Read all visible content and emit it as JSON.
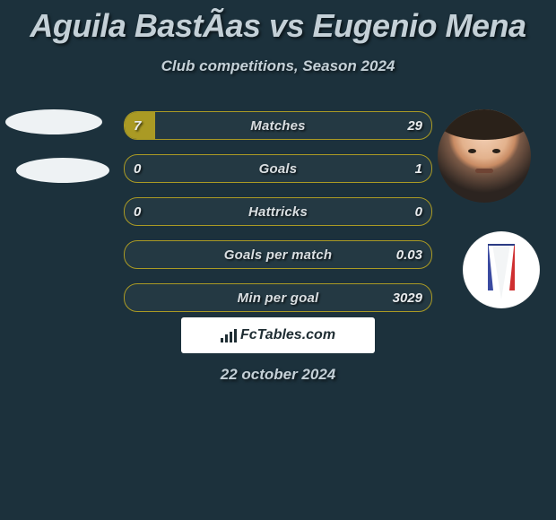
{
  "colors": {
    "background": "#1c313c",
    "bar_fill": "#aa9a24",
    "bar_border": "#aa9a24",
    "text_main": "#c4d0d7",
    "text_value": "#e8ebed",
    "badge_bg": "#ffffff",
    "badge_text": "#1f2d33"
  },
  "header": {
    "title": "Aguila BastÃ­as vs Eugenio Mena",
    "subtitle": "Club competitions, Season 2024"
  },
  "rows": [
    {
      "label": "Matches",
      "left": "7",
      "right": "29",
      "left_pct": 10,
      "right_pct": 0
    },
    {
      "label": "Goals",
      "left": "0",
      "right": "1",
      "left_pct": 0,
      "right_pct": 0
    },
    {
      "label": "Hattricks",
      "left": "0",
      "right": "0",
      "left_pct": 0,
      "right_pct": 0
    },
    {
      "label": "Goals per match",
      "left": "",
      "right": "0.03",
      "left_pct": 0,
      "right_pct": 0
    },
    {
      "label": "Min per goal",
      "left": "",
      "right": "3029",
      "left_pct": 0,
      "right_pct": 0
    }
  ],
  "footer": {
    "site": "FcTables.com",
    "date": "22 october 2024"
  },
  "typography": {
    "title_fontsize": 36,
    "subtitle_fontsize": 17,
    "row_label_fontsize": 15
  }
}
